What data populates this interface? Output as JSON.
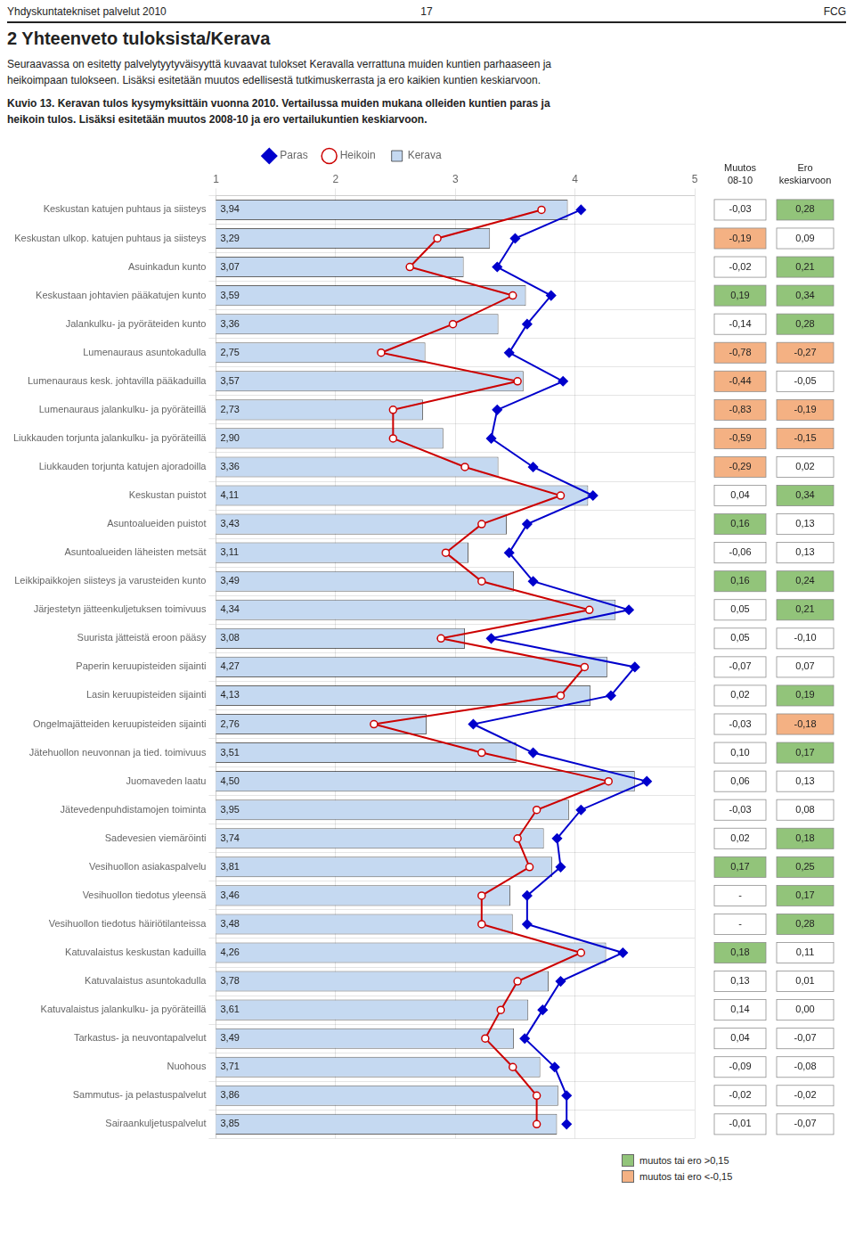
{
  "chart_data": {
    "type": "bar",
    "orientation": "horizontal",
    "title": "2 Yhteenveto tuloksista/Kerava",
    "subtitle": "Seuraavassa on esitetty palvelytyytyväisyyttä kuvaavat tulokset Keravalla verrattuna muiden kuntien parhaaseen ja\nheikoimpaan tulokseen. Lisäksi esitetään muutos edellisestä tutkimuskerrasta ja ero kaikien kuntien keskiarvoon.",
    "annotations": [
      {
        "text": "Yhdyskuntatekniset palvelut 2010"
      },
      {
        "text": "17"
      },
      {
        "text": "FCG"
      },
      {
        "text": "Kuvio 13. Keravan tulos kysymyksittäin vuonna 2010. Vertailussa muiden mukana olleiden kuntien paras ja\nheikoin tulos. Lisäksi esitetään muutos 2008-10 ja ero vertailukuntien keskiarvoon."
      },
      {
        "text": "muutos tai ero  >0,15",
        "color": "#92c47a"
      },
      {
        "text": "muutos tai ero  <-0,15",
        "color": "#f4b183"
      }
    ],
    "categories": [
      "Keskustan katujen puhtaus ja siisteys",
      "Keskustan ulkop. katujen puhtaus ja siisteys",
      "Asuinkadun kunto",
      "Keskustaan johtavien pääkatujen kunto",
      "Jalankulku- ja pyöräteiden kunto",
      "Lumenauraus asuntokadulla",
      "Lumenauraus kesk. johtavilla pääkaduilla",
      "Lumenauraus jalankulku- ja pyöräteillä",
      "Liukkauden torjunta jalankulku- ja pyöräteillä",
      "Liukkauden torjunta katujen ajoradoilla",
      "Keskustan puistot",
      "Asuntoalueiden puistot",
      "Asuntoalueiden läheisten metsät",
      "Leikkipaikkojen siisteys ja varusteiden kunto",
      "Järjestetyn jätteenkuljetuksen toimivuus",
      "Suurista jätteistä eroon pääsy",
      "Paperin keruupisteiden sijainti",
      "Lasin keruupisteiden sijainti",
      "Ongelmajätteiden keruupisteiden sijainti",
      "Jätehuollon neuvonnan ja tied. toimivuus",
      "Juomaveden laatu",
      "Jätevedenpuhdistamojen toiminta",
      "Sadevesien viemäröinti",
      "Vesihuollon asiakaspalvelu",
      "Vesihuollon tiedotus yleensä",
      "Vesihuollon tiedotus häiriötilanteissa",
      "Katuvalaistus keskustan kaduilla",
      "Katuvalaistus asuntokadulla",
      "Katuvalaistus jalankulku- ja pyöräteillä",
      "Tarkastus- ja neuvontapalvelut",
      "Nuohous",
      "Sammutus- ja pelastuspalvelut",
      "Sairaankuljetuspalvelut"
    ],
    "series": [
      {
        "name": "Kerava",
        "type": "bar",
        "color": "#c5d9f1",
        "data_labels": true,
        "values": [
          3.94,
          3.29,
          3.07,
          3.59,
          3.36,
          2.75,
          3.57,
          2.73,
          2.9,
          3.36,
          4.11,
          3.43,
          3.11,
          3.49,
          4.34,
          3.08,
          4.27,
          4.13,
          2.76,
          3.51,
          4.5,
          3.95,
          3.74,
          3.81,
          3.46,
          3.48,
          4.26,
          3.78,
          3.61,
          3.49,
          3.71,
          3.86,
          3.85
        ],
        "value_labels": [
          "3,94",
          "3,29",
          "3,07",
          "3,59",
          "3,36",
          "2,75",
          "3,57",
          "2,73",
          "2,90",
          "3,36",
          "4,11",
          "3,43",
          "3,11",
          "3,49",
          "4,34",
          "3,08",
          "4,27",
          "4,13",
          "2,76",
          "3,51",
          "4,50",
          "3,95",
          "3,74",
          "3,81",
          "3,46",
          "3,48",
          "4,26",
          "3,78",
          "3,61",
          "3,49",
          "3,71",
          "3,86",
          "3,85"
        ]
      },
      {
        "name": "Paras",
        "type": "line",
        "color": "#0000cc",
        "marker": "diamond",
        "line_style": "solid",
        "values": [
          4.05,
          3.5,
          3.35,
          3.8,
          3.6,
          3.45,
          3.9,
          3.35,
          3.3,
          3.65,
          4.15,
          3.6,
          3.45,
          3.65,
          4.45,
          3.3,
          4.5,
          4.3,
          3.15,
          3.65,
          4.6,
          4.05,
          3.85,
          3.88,
          3.6,
          3.6,
          4.4,
          3.88,
          3.73,
          3.58,
          3.83,
          3.93,
          3.93
        ]
      },
      {
        "name": "Heikoin",
        "type": "line",
        "color": "#cc0000",
        "marker": "open circle",
        "line_style": "solid",
        "values": [
          3.72,
          2.85,
          2.62,
          3.48,
          2.98,
          2.38,
          3.52,
          2.48,
          2.48,
          3.08,
          3.88,
          3.22,
          2.92,
          3.22,
          4.12,
          2.88,
          4.08,
          3.88,
          2.32,
          3.22,
          4.28,
          3.68,
          3.52,
          3.62,
          3.22,
          3.22,
          4.05,
          3.52,
          3.38,
          3.25,
          3.48,
          3.68,
          3.68
        ]
      }
    ],
    "table": [
      {
        "header": [
          "Muutos",
          "08-10"
        ],
        "values": [
          -0.03,
          -0.19,
          -0.02,
          0.19,
          -0.14,
          -0.78,
          -0.44,
          -0.83,
          -0.59,
          -0.29,
          0.04,
          0.16,
          -0.06,
          0.16,
          0.05,
          0.05,
          -0.07,
          0.02,
          -0.03,
          0.1,
          0.06,
          -0.03,
          0.02,
          0.17,
          null,
          null,
          0.18,
          0.13,
          0.14,
          0.04,
          -0.09,
          -0.02,
          -0.01
        ],
        "value_labels": [
          "-0,03",
          "-0,19",
          "-0,02",
          "0,19",
          "-0,14",
          "-0,78",
          "-0,44",
          "-0,83",
          "-0,59",
          "-0,29",
          "0,04",
          "0,16",
          "-0,06",
          "0,16",
          "0,05",
          "0,05",
          "-0,07",
          "0,02",
          "-0,03",
          "0,10",
          "0,06",
          "-0,03",
          "0,02",
          "0,17",
          "-",
          "-",
          "0,18",
          "0,13",
          "0,14",
          "0,04",
          "-0,09",
          "-0,02",
          "-0,01"
        ],
        "colors": [
          "#ffffff",
          "#f4b183",
          "#ffffff",
          "#92c47a",
          "#ffffff",
          "#f4b183",
          "#f4b183",
          "#f4b183",
          "#f4b183",
          "#f4b183",
          "#ffffff",
          "#92c47a",
          "#ffffff",
          "#92c47a",
          "#ffffff",
          "#ffffff",
          "#ffffff",
          "#ffffff",
          "#ffffff",
          "#ffffff",
          "#ffffff",
          "#ffffff",
          "#ffffff",
          "#92c47a",
          "#ffffff",
          "#ffffff",
          "#92c47a",
          "#ffffff",
          "#ffffff",
          "#ffffff",
          "#ffffff",
          "#ffffff",
          "#ffffff"
        ]
      },
      {
        "header": [
          "Ero",
          "keskiarvoon"
        ],
        "values": [
          0.28,
          0.09,
          0.21,
          0.34,
          0.28,
          -0.27,
          -0.05,
          -0.19,
          -0.15,
          0.02,
          0.34,
          0.13,
          0.13,
          0.24,
          0.21,
          -0.1,
          0.07,
          0.19,
          -0.18,
          0.17,
          0.13,
          0.08,
          0.18,
          0.25,
          0.17,
          0.28,
          0.11,
          0.01,
          0.0,
          -0.07,
          -0.08,
          -0.02,
          -0.07
        ],
        "value_labels": [
          "0,28",
          "0,09",
          "0,21",
          "0,34",
          "0,28",
          "-0,27",
          "-0,05",
          "-0,19",
          "-0,15",
          "0,02",
          "0,34",
          "0,13",
          "0,13",
          "0,24",
          "0,21",
          "-0,10",
          "0,07",
          "0,19",
          "-0,18",
          "0,17",
          "0,13",
          "0,08",
          "0,18",
          "0,25",
          "0,17",
          "0,28",
          "0,11",
          "0,01",
          "0,00",
          "-0,07",
          "-0,08",
          "-0,02",
          "-0,07"
        ],
        "colors": [
          "#92c47a",
          "#ffffff",
          "#92c47a",
          "#92c47a",
          "#92c47a",
          "#f4b183",
          "#ffffff",
          "#f4b183",
          "#f4b183",
          "#ffffff",
          "#92c47a",
          "#ffffff",
          "#ffffff",
          "#92c47a",
          "#92c47a",
          "#ffffff",
          "#ffffff",
          "#92c47a",
          "#f4b183",
          "#92c47a",
          "#ffffff",
          "#ffffff",
          "#92c47a",
          "#92c47a",
          "#92c47a",
          "#92c47a",
          "#ffffff",
          "#ffffff",
          "#ffffff",
          "#ffffff",
          "#ffffff",
          "#ffffff",
          "#ffffff"
        ]
      }
    ],
    "xlim": [
      1,
      5
    ],
    "xticks": [
      1,
      2,
      3,
      4,
      5
    ],
    "grid": true,
    "legend": "top"
  }
}
